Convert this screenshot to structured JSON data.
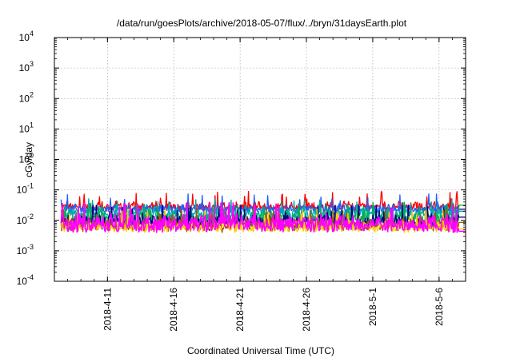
{
  "chart_data": {
    "type": "line",
    "title": "/data/run/goesPlots/archive/2018-05-07/flux/../bryn/31daysEarth.plot",
    "xlabel": "Coordinated Universal Time (UTC)",
    "ylabel": "cGy/day",
    "yscale": "log",
    "ylim": [
      0.0001,
      10000
    ],
    "yticks": [
      {
        "base": "10",
        "exp": "-4",
        "value": 0.0001
      },
      {
        "base": "10",
        "exp": "-3",
        "value": 0.001
      },
      {
        "base": "10",
        "exp": "-2",
        "value": 0.01
      },
      {
        "base": "10",
        "exp": "-1",
        "value": 0.1
      },
      {
        "base": "10",
        "exp": "0",
        "value": 1
      },
      {
        "base": "10",
        "exp": "1",
        "value": 10
      },
      {
        "base": "10",
        "exp": "2",
        "value": 100
      },
      {
        "base": "10",
        "exp": "3",
        "value": 1000
      },
      {
        "base": "10",
        "exp": "4",
        "value": 10000
      }
    ],
    "xlim": [
      "2018-04-07",
      "2018-05-08"
    ],
    "xticks": [
      "2018-4-11",
      "2018-4-16",
      "2018-4-21",
      "2018-4-26",
      "2018-5-1",
      "2018-5-6"
    ],
    "grid": true,
    "series": [
      {
        "color": "#ff0000",
        "mean": 0.028,
        "spread": 0.25,
        "spike": 0.07
      },
      {
        "color": "#1f5fff",
        "mean": 0.024,
        "spread": 0.22,
        "spike": 0.06
      },
      {
        "color": "#00aaaa",
        "mean": 0.016,
        "spread": 0.3,
        "spike": 0.04
      },
      {
        "color": "#00b050",
        "mean": 0.011,
        "spread": 0.35,
        "spike": 0.03
      },
      {
        "color": "#000080",
        "mean": 0.009,
        "spread": 0.35,
        "spike": 0.025
      },
      {
        "color": "#a05a00",
        "mean": 0.007,
        "spread": 0.3,
        "spike": 0.02
      },
      {
        "color": "#ffcc00",
        "mean": 0.006,
        "spread": 0.3,
        "spike": 0.018
      },
      {
        "color": "#ff00ff",
        "mean": 0.0075,
        "spread": 0.5,
        "spike": 0.03
      }
    ]
  }
}
